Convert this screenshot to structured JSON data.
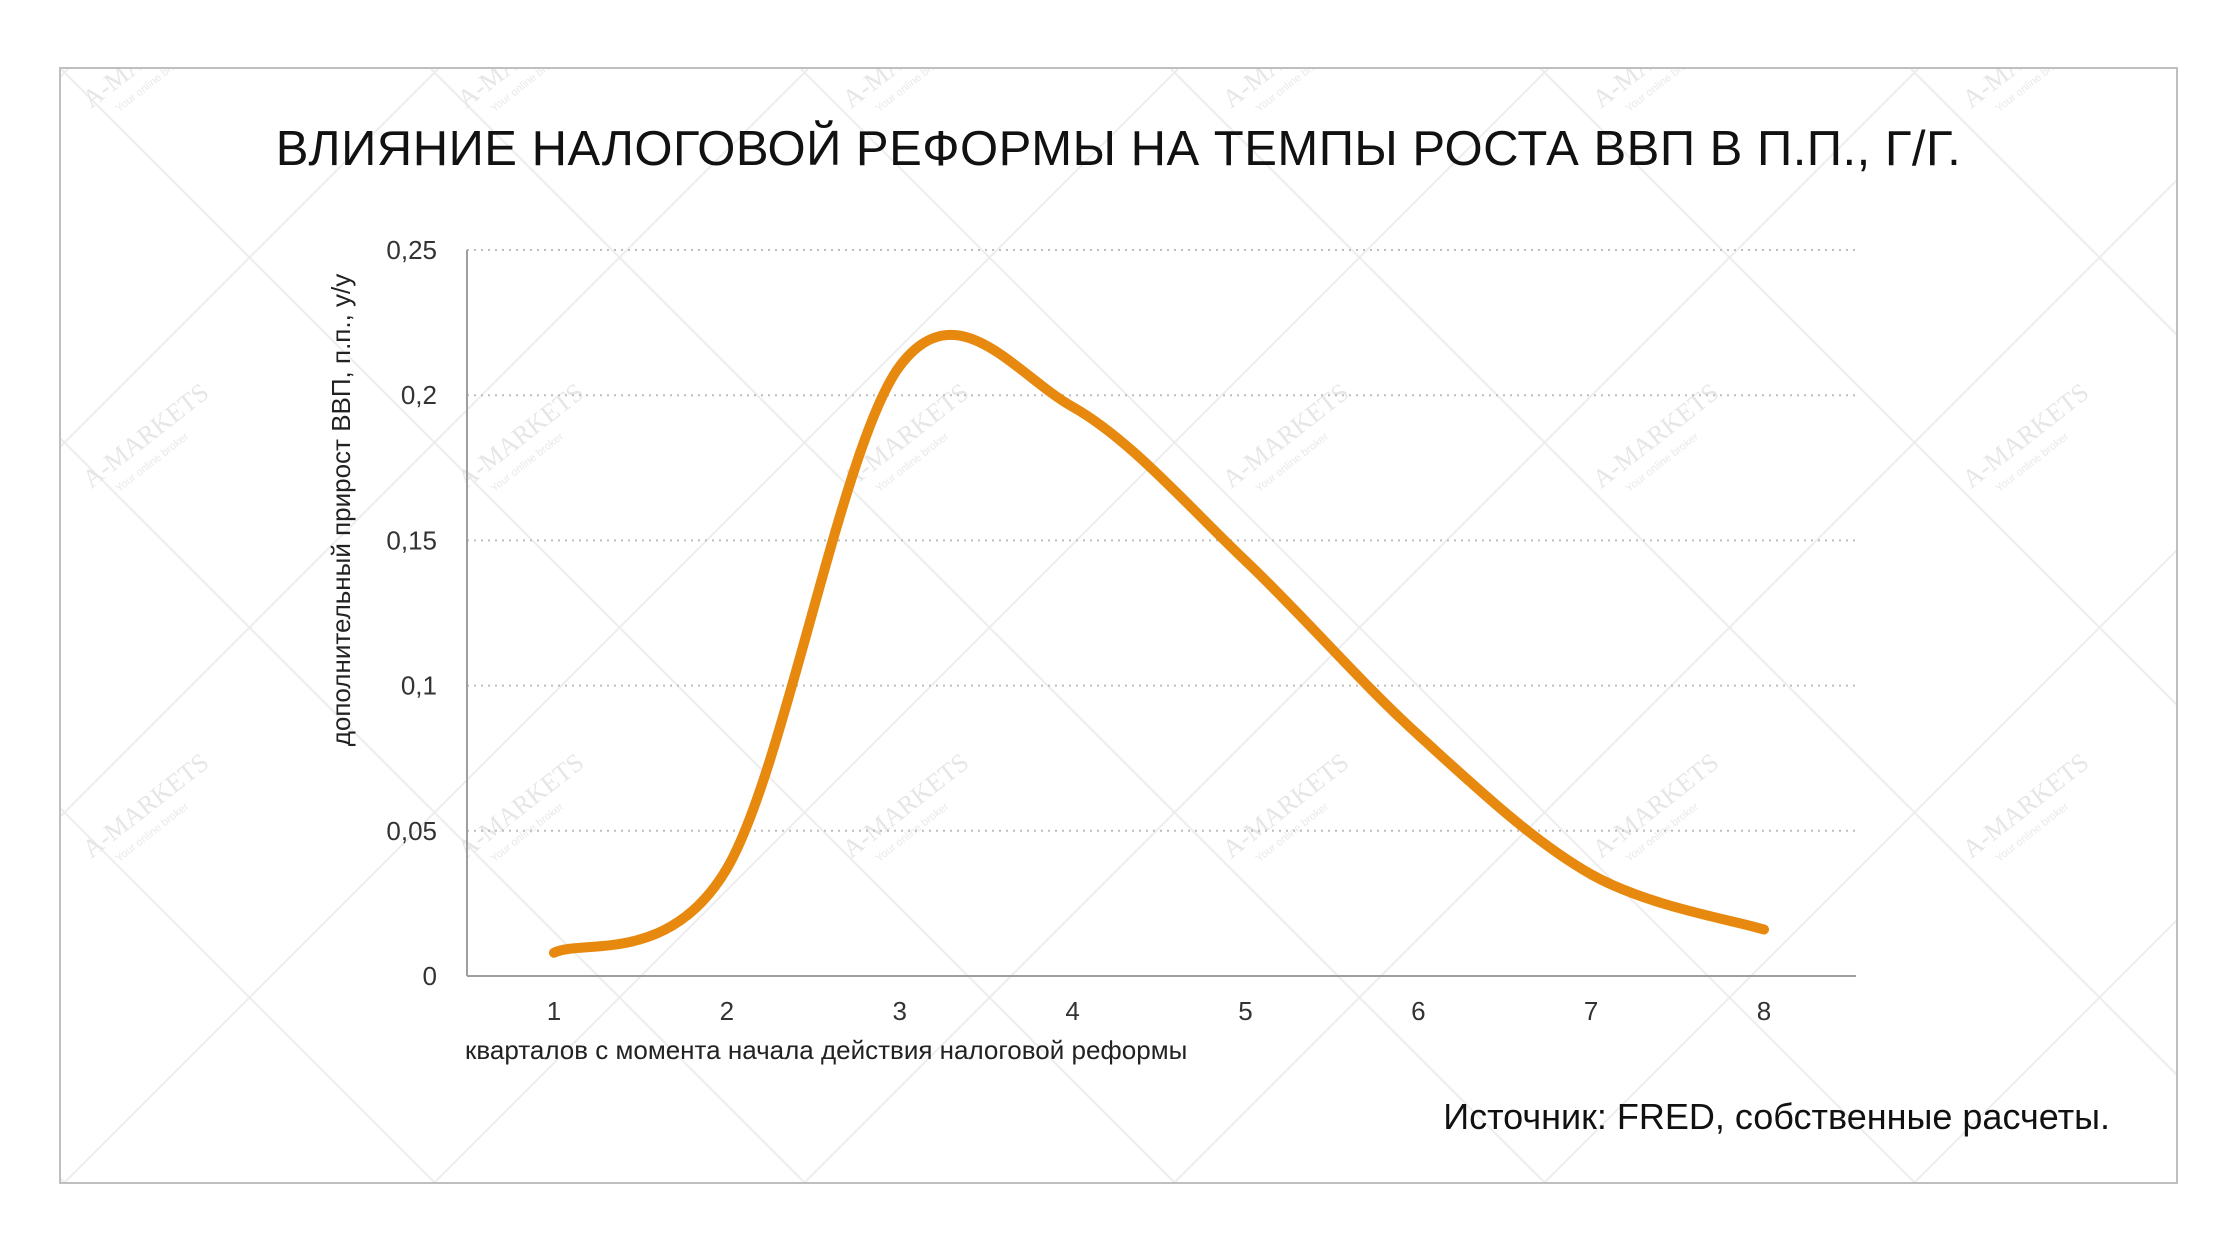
{
  "title": "ВЛИЯНИЕ НАЛОГОВОЙ РЕФОРМЫ НА ТЕМПЫ РОСТА ВВП В П.П., Г/Г.",
  "source": "Источник: FRED, собственные расчеты.",
  "watermark": {
    "brand": "A-MARKETS",
    "tagline": "Your online broker"
  },
  "colors": {
    "line": "#E8890F",
    "grid": "#bdbdbd",
    "axis": "#9e9e9e",
    "frame": "#bfbfbf"
  },
  "chart_data": {
    "type": "line",
    "title": "ВЛИЯНИЕ НАЛОГОВОЙ РЕФОРМЫ НА ТЕМПЫ РОСТА ВВП В П.П., Г/Г.",
    "xlabel": "кварталов с момента начала действия налоговой реформы",
    "ylabel": "дополнительный прирост ВВП, п.п., у/у",
    "x": [
      1,
      2,
      3,
      4,
      5,
      6,
      7,
      8
    ],
    "x_tick_labels": [
      "1",
      "2",
      "3",
      "4",
      "5",
      "6",
      "7",
      "8"
    ],
    "y_tick_labels": [
      "0",
      "0,05",
      "0,1",
      "0,15",
      "0,2",
      "0,25"
    ],
    "y_ticks": [
      0,
      0.05,
      0.1,
      0.15,
      0.2,
      0.25
    ],
    "ylim": [
      0,
      0.25
    ],
    "grid": "horizontal dotted",
    "smooth": true,
    "series": [
      {
        "values": [
          0.008,
          0.037,
          0.21,
          0.196,
          0.143,
          0.083,
          0.035,
          0.016
        ]
      }
    ]
  }
}
